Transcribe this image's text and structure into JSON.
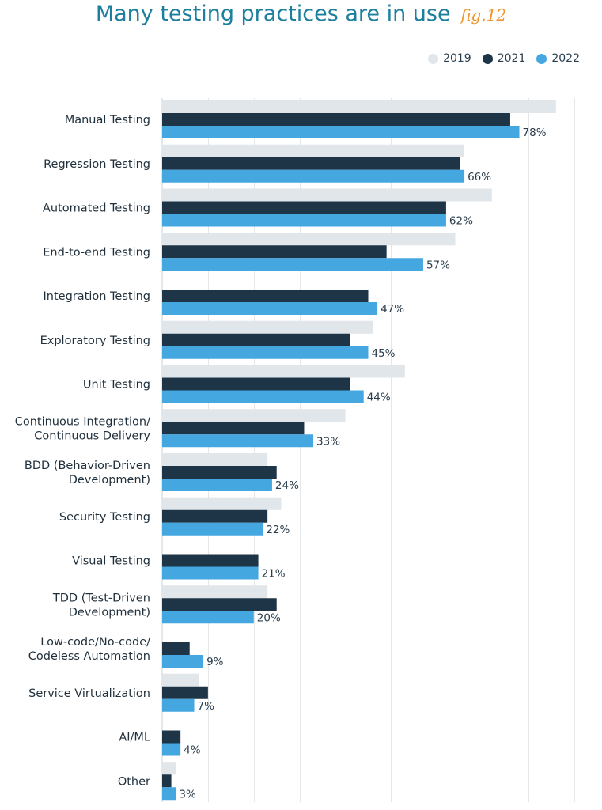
{
  "header": {
    "title": "Many testing practices are in use",
    "fig_label": "fig.12"
  },
  "legend": [
    {
      "label": "2019",
      "color": "#e1e6ea"
    },
    {
      "label": "2021",
      "color": "#1d3547"
    },
    {
      "label": "2022",
      "color": "#45a7e0"
    }
  ],
  "chart_data": {
    "type": "bar",
    "orientation": "horizontal",
    "title": "Many testing practices are in use",
    "xlim": [
      0,
      90
    ],
    "grid": true,
    "legend_position": "top-right",
    "categories": [
      "Manual Testing",
      "Regression Testing",
      "Automated Testing",
      "End-to-end Testing",
      "Integration Testing",
      "Exploratory Testing",
      "Unit Testing",
      "Continuous Integration/\nContinuous Delivery",
      "BDD (Behavior-Driven\nDevelopment)",
      "Security Testing",
      "Visual Testing",
      "TDD (Test-Driven\nDevelopment)",
      "Low-code/No-code/\nCodeless Automation",
      "Service Virtualization",
      "AI/ML",
      "Other"
    ],
    "series": [
      {
        "name": "2019",
        "color": "#e1e6ea",
        "values": [
          86,
          66,
          72,
          64,
          null,
          46,
          53,
          40,
          23,
          26,
          null,
          23,
          null,
          8,
          null,
          3
        ]
      },
      {
        "name": "2021",
        "color": "#1d3547",
        "values": [
          76,
          65,
          62,
          49,
          45,
          41,
          41,
          31,
          25,
          23,
          21,
          25,
          6,
          10,
          4,
          2
        ]
      },
      {
        "name": "2022",
        "color": "#45a7e0",
        "values": [
          78,
          66,
          62,
          57,
          47,
          45,
          44,
          33,
          24,
          22,
          21,
          20,
          9,
          7,
          4,
          3
        ]
      }
    ],
    "value_labels": [
      "78%",
      "66%",
      "62%",
      "57%",
      "47%",
      "45%",
      "44%",
      "33%",
      "24%",
      "22%",
      "21%",
      "20%",
      "9%",
      "7%",
      "4%",
      "3%"
    ]
  }
}
